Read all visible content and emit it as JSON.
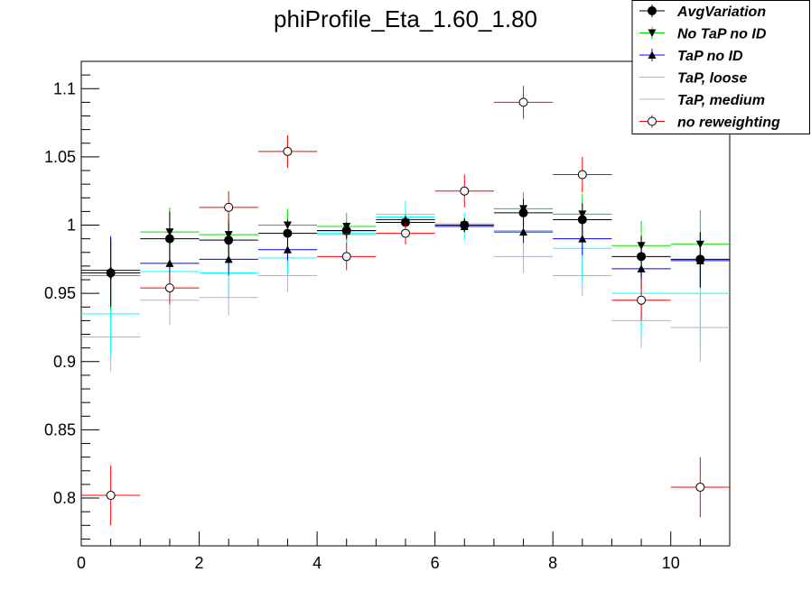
{
  "chart_data": {
    "type": "scatter",
    "title": "phiProfile_Eta_1.60_1.80",
    "xlabel": "",
    "ylabel": "",
    "xlim": [
      0,
      11
    ],
    "ylim": [
      0.765,
      1.12
    ],
    "x_ticks": [
      0,
      2,
      4,
      6,
      8,
      10
    ],
    "x_tick_labels": [
      "0",
      "2",
      "4",
      "6",
      "8",
      "10"
    ],
    "y_ticks": [
      0.8,
      0.85,
      0.9,
      0.95,
      1,
      1.05,
      1.1
    ],
    "y_tick_labels": [
      "0.8",
      "0.85",
      "0.9",
      "0.95",
      "1",
      "1.05",
      "1.1"
    ],
    "grid": false,
    "legend_position": "top-right",
    "x": [
      0.5,
      1.5,
      2.5,
      3.5,
      4.5,
      5.5,
      6.5,
      7.5,
      8.5,
      9.5,
      10.5
    ],
    "x_halfwidth": 0.5,
    "series": [
      {
        "name": "AvgVariation",
        "color": "#000000",
        "marker": "circle-filled",
        "values": [
          0.965,
          0.99,
          0.989,
          0.994,
          0.996,
          1.002,
          1.0,
          1.009,
          1.004,
          0.977,
          0.975
        ],
        "errors": [
          0.025,
          0.02,
          0.015,
          0.01,
          0.006,
          0.005,
          0.005,
          0.01,
          0.012,
          0.015,
          0.02
        ]
      },
      {
        "name": "No TaP no ID",
        "color": "#00e000",
        "marker": "triangle-down-filled",
        "values": [
          0.963,
          0.995,
          0.993,
          1.0,
          0.999,
          1.002,
          1.0,
          1.012,
          1.008,
          0.985,
          0.986
        ],
        "errors": [
          0.025,
          0.018,
          0.015,
          0.012,
          0.01,
          0.006,
          0.005,
          0.012,
          0.015,
          0.018,
          0.025
        ]
      },
      {
        "name": "TaP no ID",
        "color": "#0000ff",
        "marker": "triangle-up-filled",
        "values": [
          0.967,
          0.972,
          0.975,
          0.982,
          0.996,
          1.004,
          0.999,
          0.995,
          0.99,
          0.968,
          0.974
        ],
        "errors": [
          0.025,
          0.015,
          0.012,
          0.008,
          0.005,
          0.004,
          0.004,
          0.008,
          0.012,
          0.015,
          0.02
        ]
      },
      {
        "name": "TaP, loose",
        "color": "#00ffff",
        "marker": "none",
        "values": [
          0.935,
          0.966,
          0.965,
          0.976,
          0.994,
          1.006,
          0.999,
          0.996,
          0.983,
          0.95,
          0.95
        ],
        "errors": [
          0.03,
          0.02,
          0.018,
          0.012,
          0.008,
          0.012,
          0.01,
          0.02,
          0.025,
          0.03,
          0.04
        ]
      },
      {
        "name": "TaP, medium",
        "color": "#b0b0c8",
        "marker": "none",
        "values": [
          0.918,
          0.945,
          0.947,
          0.963,
          0.993,
          1.008,
          1.001,
          0.977,
          0.963,
          0.93,
          0.925
        ],
        "errors": [
          0.025,
          0.018,
          0.013,
          0.012,
          0.008,
          0.006,
          0.006,
          0.012,
          0.015,
          0.02,
          0.025
        ]
      },
      {
        "name": "no reweighting",
        "color": "#ff0000",
        "marker": "circle-open",
        "values": [
          0.802,
          0.954,
          1.013,
          1.054,
          0.977,
          0.994,
          1.025,
          1.09,
          1.037,
          0.945,
          0.808
        ],
        "errors": [
          0.022,
          0.012,
          0.012,
          0.012,
          0.01,
          0.008,
          0.012,
          0.012,
          0.013,
          0.015,
          0.022
        ]
      }
    ]
  }
}
